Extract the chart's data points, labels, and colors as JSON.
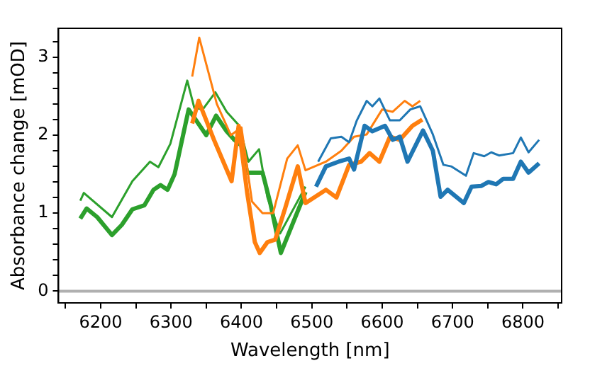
{
  "chart_data": {
    "type": "line",
    "xlabel": "Wavelength [nm]",
    "ylabel": "Absorbance change [mOD]",
    "xlim": [
      6140,
      6855
    ],
    "ylim": [
      -0.15,
      3.37
    ],
    "xticks": [
      {
        "value": 6150,
        "label": null
      },
      6200,
      {
        "value": 6250,
        "label": null
      },
      6400,
      {
        "value": 6350,
        "label": null
      },
      6300,
      {
        "value": 6450,
        "label": null
      },
      6500,
      {
        "value": 6550,
        "label": null
      },
      6600,
      {
        "value": 6650,
        "label": null
      },
      6700,
      {
        "value": 6750,
        "label": null
      },
      6800,
      {
        "value": 6850,
        "label": null
      }
    ],
    "yticks": [
      0,
      {
        "value": 0.2,
        "label": null
      },
      {
        "value": 0.4,
        "label": null
      },
      {
        "value": 0.6,
        "label": null
      },
      {
        "value": 0.8,
        "label": null
      },
      1,
      {
        "value": 1.2,
        "label": null
      },
      {
        "value": 1.4,
        "label": null
      },
      {
        "value": 1.6,
        "label": null
      },
      {
        "value": 1.8,
        "label": null
      },
      2,
      {
        "value": 2.2,
        "label": null
      },
      {
        "value": 2.4,
        "label": null
      },
      {
        "value": 2.6,
        "label": null
      },
      {
        "value": 2.8,
        "label": null
      },
      3,
      {
        "value": 3.2,
        "label": null
      }
    ],
    "grid": false,
    "legend": false,
    "marker": "none",
    "line_style": "solid",
    "ref_lines": [
      {
        "axis": "y",
        "value": 0,
        "color": "#b0b0b0"
      }
    ],
    "series": [
      {
        "color": "#1f77b4",
        "x": [
          6509,
          6527,
          6542,
          6553,
          6564,
          6578,
          6586,
          6596,
          6611,
          6625,
          6640,
          6654,
          6672,
          6687,
          6698,
          6719,
          6730,
          6745,
          6755,
          6766,
          6786,
          6797,
          6808,
          6823
        ],
        "values": [
          1.66,
          1.96,
          1.98,
          1.91,
          2.19,
          2.44,
          2.37,
          2.47,
          2.19,
          2.19,
          2.33,
          2.37,
          2.01,
          1.62,
          1.6,
          1.48,
          1.77,
          1.73,
          1.78,
          1.74,
          1.77,
          1.97,
          1.78,
          1.94
        ]
      },
      {
        "color": "#1f77b4",
        "x": [
          6506,
          6520,
          6538,
          6553,
          6560,
          6575,
          6586,
          6604,
          6615,
          6625,
          6636,
          6658,
          6672,
          6683,
          6693,
          6716,
          6727,
          6741,
          6751,
          6762,
          6772,
          6786,
          6797,
          6808,
          6823
        ],
        "values": [
          1.34,
          1.6,
          1.66,
          1.7,
          1.56,
          2.12,
          2.05,
          2.12,
          1.94,
          1.98,
          1.66,
          2.06,
          1.8,
          1.21,
          1.3,
          1.13,
          1.34,
          1.35,
          1.4,
          1.37,
          1.44,
          1.44,
          1.66,
          1.52,
          1.64
        ]
      },
      {
        "color": "#ff7f0e",
        "x": [
          6330,
          6340,
          6365,
          6385,
          6400,
          6415,
          6430,
          6445,
          6465,
          6480,
          6491,
          6520,
          6542,
          6560,
          6578,
          6600,
          6615,
          6632,
          6643,
          6654
        ],
        "values": [
          2.75,
          3.25,
          2.4,
          2.0,
          2.1,
          1.15,
          1.0,
          1.0,
          1.7,
          1.87,
          1.55,
          1.66,
          1.8,
          1.98,
          2.01,
          2.33,
          2.3,
          2.44,
          2.37,
          2.44
        ]
      },
      {
        "color": "#ff7f0e",
        "x": [
          6330,
          6339,
          6361,
          6386,
          6396,
          6408,
          6419,
          6426,
          6437,
          6448,
          6462,
          6480,
          6491,
          6520,
          6535,
          6553,
          6570,
          6582,
          6596,
          6611,
          6625,
          6643,
          6657
        ],
        "values": [
          2.15,
          2.44,
          1.94,
          1.41,
          2.12,
          1.27,
          0.63,
          0.49,
          0.63,
          0.66,
          1.06,
          1.6,
          1.13,
          1.3,
          1.2,
          1.62,
          1.66,
          1.77,
          1.66,
          1.98,
          1.94,
          2.12,
          2.2
        ]
      },
      {
        "color": "#2ca02c",
        "x": [
          6171,
          6176,
          6216,
          6245,
          6270,
          6282,
          6299,
          6323,
          6333,
          6345,
          6363,
          6379,
          6397,
          6410,
          6425,
          6437,
          6455,
          6491
        ],
        "values": [
          1.16,
          1.26,
          0.95,
          1.41,
          1.66,
          1.59,
          1.89,
          2.7,
          2.35,
          2.33,
          2.55,
          2.3,
          2.12,
          1.66,
          1.82,
          1.2,
          0.74,
          1.34
        ]
      },
      {
        "color": "#2ca02c",
        "x": [
          6171,
          6180,
          6195,
          6216,
          6230,
          6245,
          6262,
          6275,
          6285,
          6295,
          6305,
          6325,
          6350,
          6364,
          6379,
          6390,
          6401,
          6408,
          6430,
          6441,
          6456,
          6491
        ],
        "values": [
          0.93,
          1.06,
          0.95,
          0.72,
          0.85,
          1.05,
          1.1,
          1.3,
          1.36,
          1.3,
          1.5,
          2.33,
          2.0,
          2.25,
          2.05,
          1.94,
          1.86,
          1.52,
          1.52,
          1.13,
          0.49,
          1.27
        ]
      }
    ]
  }
}
